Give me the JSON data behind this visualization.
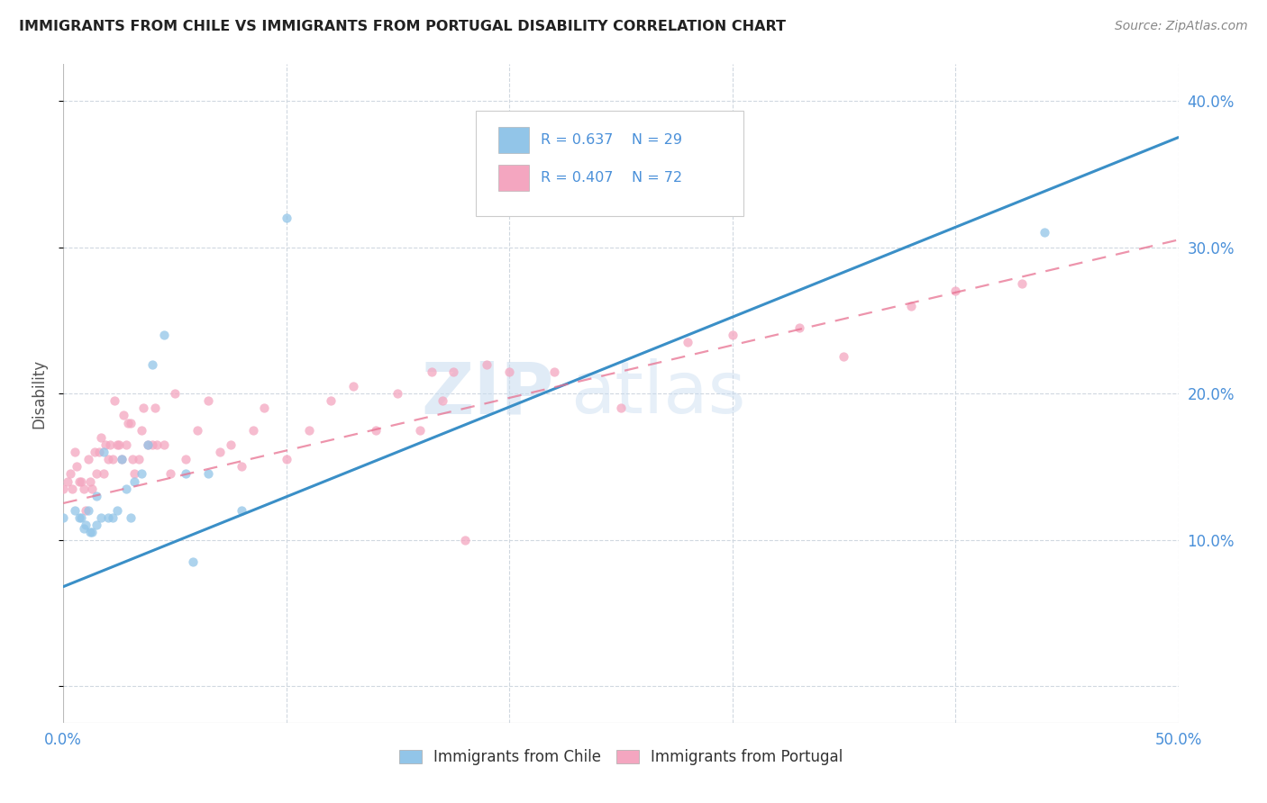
{
  "title": "IMMIGRANTS FROM CHILE VS IMMIGRANTS FROM PORTUGAL DISABILITY CORRELATION CHART",
  "source": "Source: ZipAtlas.com",
  "ylabel": "Disability",
  "xlim": [
    0.0,
    0.5
  ],
  "ylim": [
    -0.025,
    0.425
  ],
  "yticks": [
    0.0,
    0.1,
    0.2,
    0.3,
    0.4
  ],
  "ytick_labels": [
    "",
    "10.0%",
    "20.0%",
    "30.0%",
    "40.0%"
  ],
  "xticks": [
    0.0,
    0.1,
    0.2,
    0.3,
    0.4,
    0.5
  ],
  "xtick_labels": [
    "0.0%",
    "",
    "",
    "",
    "",
    "50.0%"
  ],
  "color_chile": "#92C5E8",
  "color_portugal": "#F4A6C0",
  "color_line_chile": "#3A8FC7",
  "color_line_portugal": "#E87090",
  "watermark_zip": "ZIP",
  "watermark_atlas": "atlas",
  "chile_line_x0": 0.0,
  "chile_line_y0": 0.068,
  "chile_line_x1": 0.5,
  "chile_line_y1": 0.375,
  "portugal_line_x0": 0.0,
  "portugal_line_y0": 0.125,
  "portugal_line_x1": 0.5,
  "portugal_line_y1": 0.305,
  "chile_x": [
    0.0,
    0.005,
    0.007,
    0.008,
    0.009,
    0.01,
    0.011,
    0.012,
    0.013,
    0.015,
    0.015,
    0.017,
    0.018,
    0.02,
    0.022,
    0.024,
    0.026,
    0.028,
    0.03,
    0.032,
    0.035,
    0.038,
    0.04,
    0.045,
    0.055,
    0.058,
    0.065,
    0.08,
    0.1,
    0.44
  ],
  "chile_y": [
    0.115,
    0.12,
    0.115,
    0.115,
    0.108,
    0.11,
    0.12,
    0.105,
    0.105,
    0.13,
    0.11,
    0.115,
    0.16,
    0.115,
    0.115,
    0.12,
    0.155,
    0.135,
    0.115,
    0.14,
    0.145,
    0.165,
    0.22,
    0.24,
    0.145,
    0.085,
    0.145,
    0.12,
    0.32,
    0.31
  ],
  "portugal_x": [
    0.0,
    0.002,
    0.003,
    0.004,
    0.005,
    0.006,
    0.007,
    0.008,
    0.009,
    0.01,
    0.011,
    0.012,
    0.013,
    0.014,
    0.015,
    0.016,
    0.017,
    0.018,
    0.019,
    0.02,
    0.021,
    0.022,
    0.023,
    0.024,
    0.025,
    0.026,
    0.027,
    0.028,
    0.029,
    0.03,
    0.031,
    0.032,
    0.034,
    0.035,
    0.036,
    0.038,
    0.04,
    0.041,
    0.042,
    0.045,
    0.048,
    0.05,
    0.055,
    0.06,
    0.065,
    0.07,
    0.075,
    0.08,
    0.085,
    0.09,
    0.1,
    0.11,
    0.12,
    0.13,
    0.14,
    0.15,
    0.16,
    0.165,
    0.17,
    0.175,
    0.18,
    0.19,
    0.2,
    0.22,
    0.25,
    0.28,
    0.3,
    0.33,
    0.35,
    0.38,
    0.4,
    0.43
  ],
  "portugal_y": [
    0.135,
    0.14,
    0.145,
    0.135,
    0.16,
    0.15,
    0.14,
    0.14,
    0.135,
    0.12,
    0.155,
    0.14,
    0.135,
    0.16,
    0.145,
    0.16,
    0.17,
    0.145,
    0.165,
    0.155,
    0.165,
    0.155,
    0.195,
    0.165,
    0.165,
    0.155,
    0.185,
    0.165,
    0.18,
    0.18,
    0.155,
    0.145,
    0.155,
    0.175,
    0.19,
    0.165,
    0.165,
    0.19,
    0.165,
    0.165,
    0.145,
    0.2,
    0.155,
    0.175,
    0.195,
    0.16,
    0.165,
    0.15,
    0.175,
    0.19,
    0.155,
    0.175,
    0.195,
    0.205,
    0.175,
    0.2,
    0.175,
    0.215,
    0.195,
    0.215,
    0.1,
    0.22,
    0.215,
    0.215,
    0.19,
    0.235,
    0.24,
    0.245,
    0.225,
    0.26,
    0.27,
    0.275
  ]
}
